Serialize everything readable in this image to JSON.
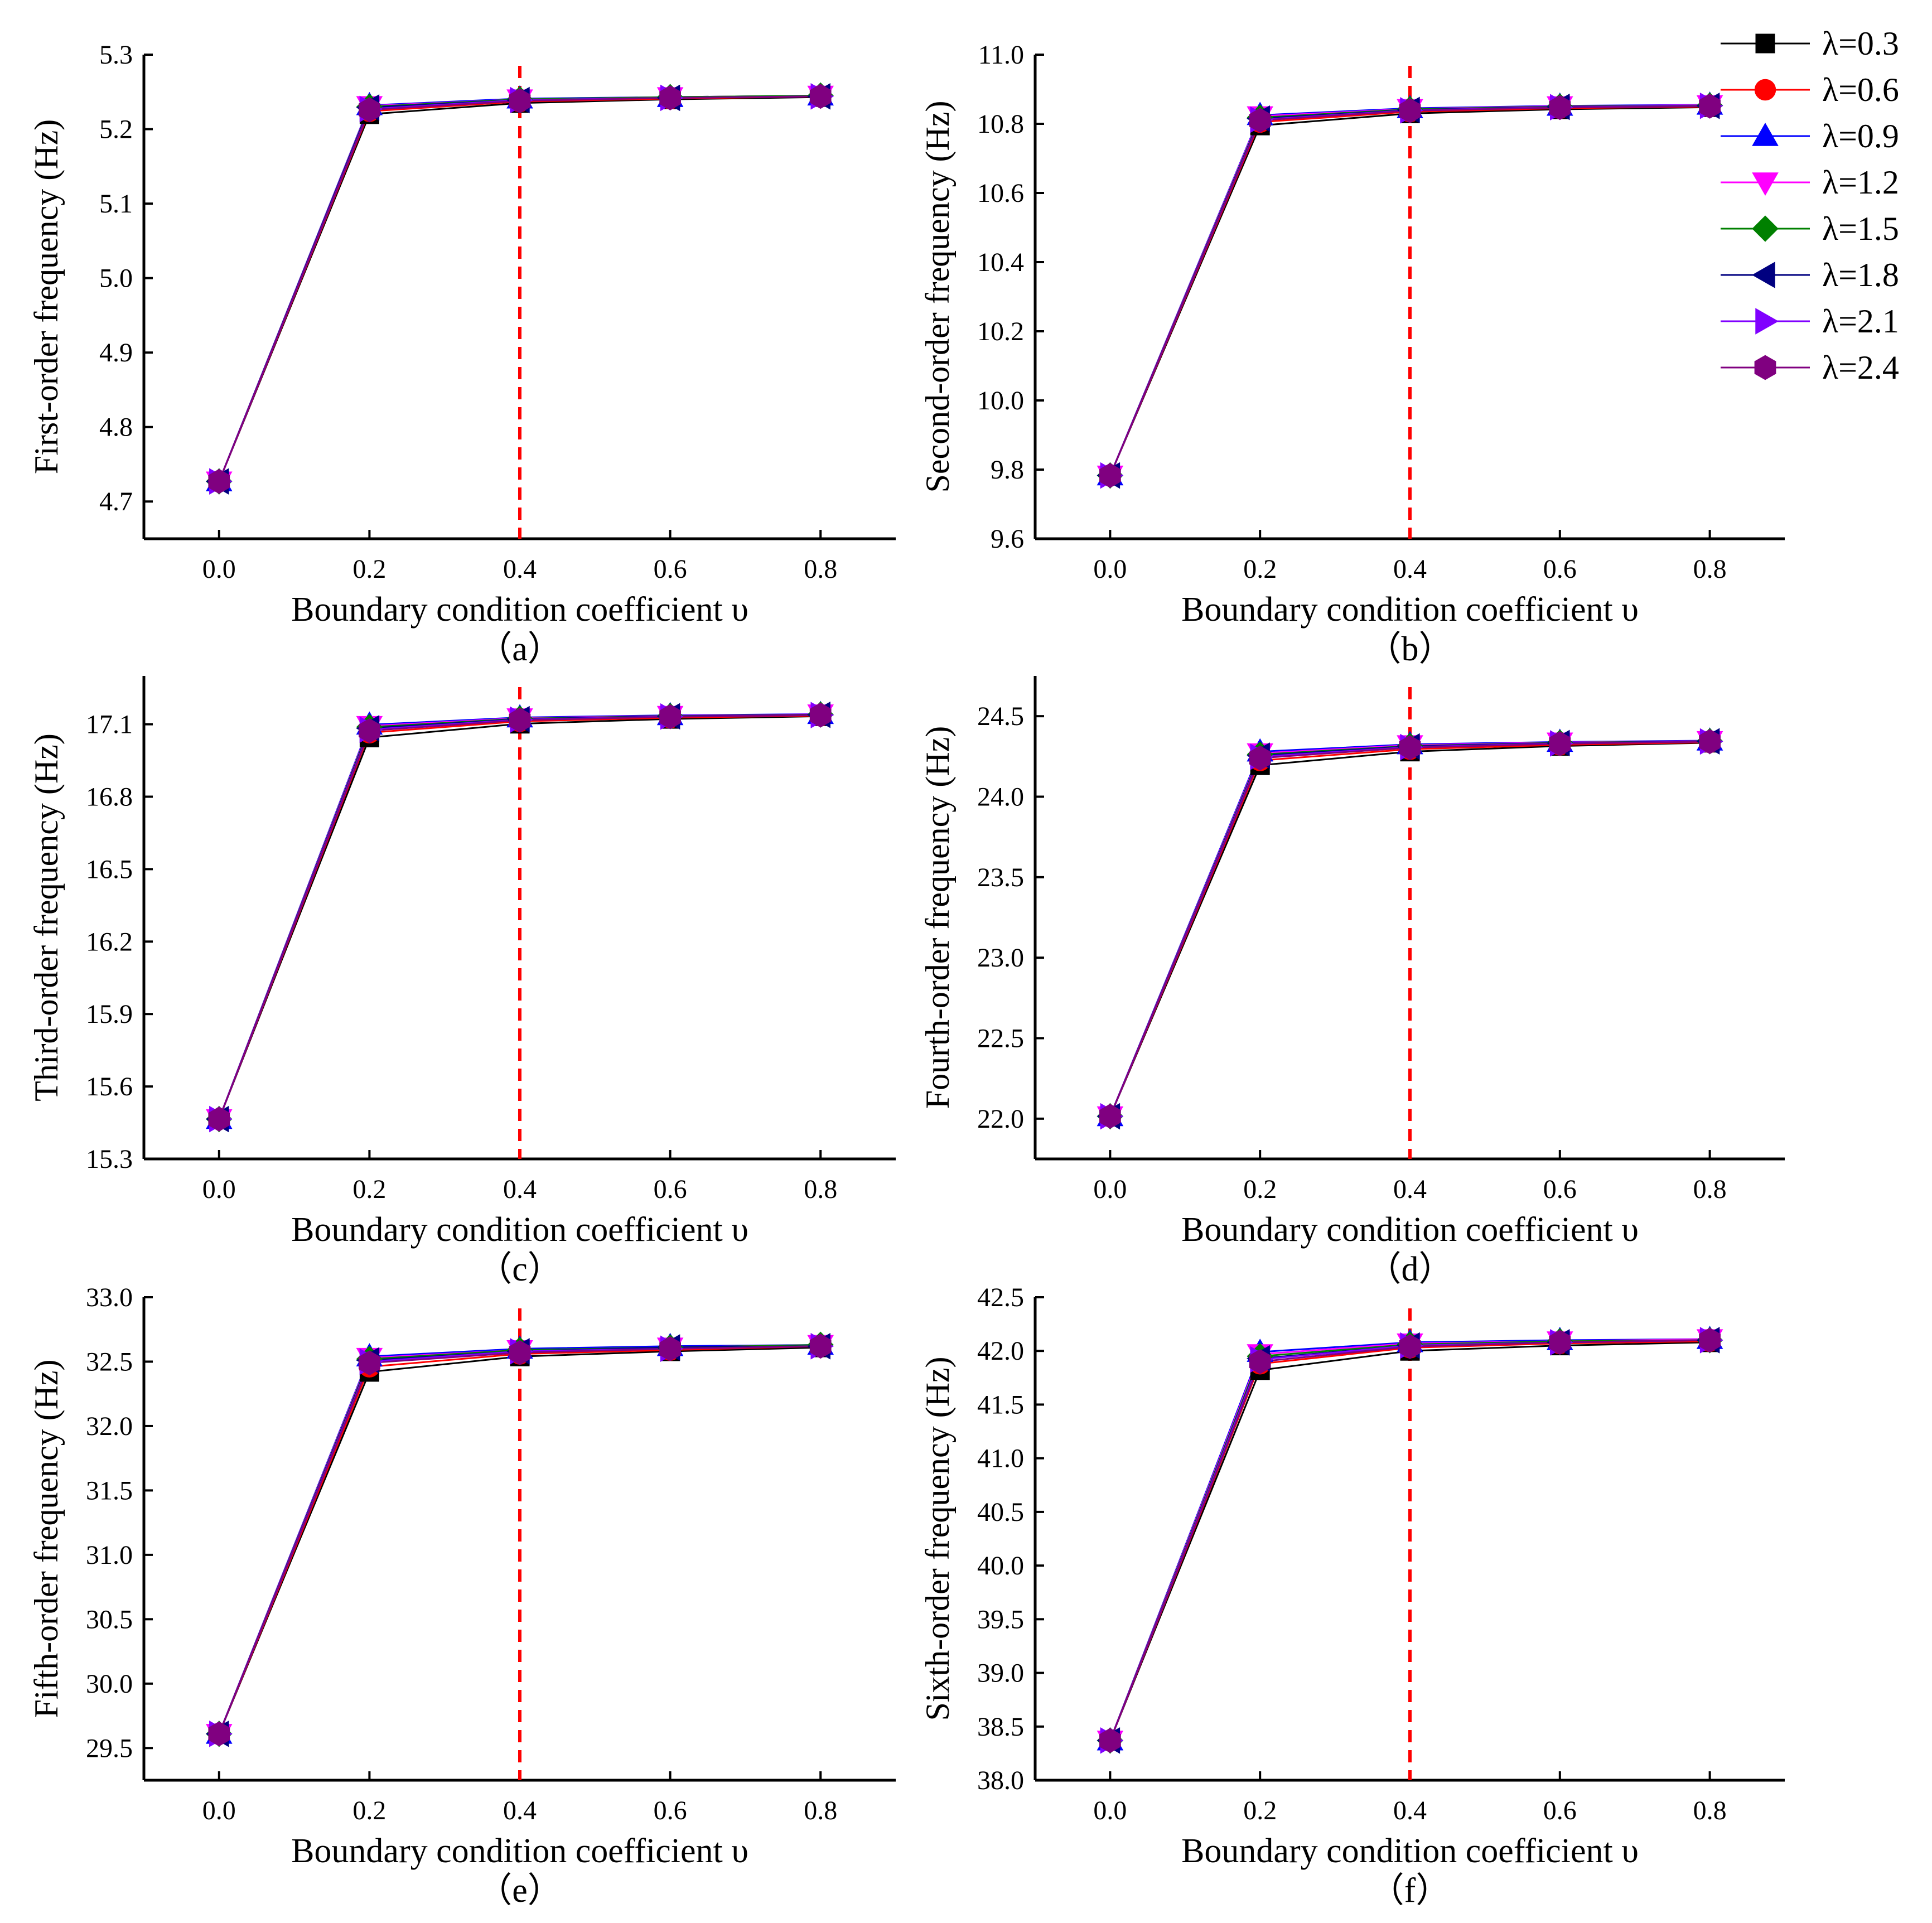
{
  "legend": [
    {
      "label": "λ=0.3",
      "color": "#000000",
      "marker": "square"
    },
    {
      "label": "λ=0.6",
      "color": "#ff0000",
      "marker": "circle"
    },
    {
      "label": "λ=0.9",
      "color": "#0000ff",
      "marker": "triangle-up"
    },
    {
      "label": "λ=1.2",
      "color": "#ff00ff",
      "marker": "triangle-down"
    },
    {
      "label": "λ=1.5",
      "color": "#008000",
      "marker": "diamond"
    },
    {
      "label": "λ=1.8",
      "color": "#000080",
      "marker": "triangle-left"
    },
    {
      "label": "λ=2.1",
      "color": "#8000ff",
      "marker": "triangle-right"
    },
    {
      "label": "λ=2.4",
      "color": "#800080",
      "marker": "hexagon"
    }
  ],
  "reference_line": {
    "x": 0.4,
    "color": "#ff0000",
    "style": "dashed"
  },
  "chart_data": [
    {
      "type": "line",
      "caption": "（a）",
      "xlabel": "Boundary condition coefficient υ",
      "ylabel": "First-order frequency (Hz)",
      "x": [
        0.0,
        0.2,
        0.4,
        0.6,
        0.8
      ],
      "xlim": [
        -0.1,
        0.9
      ],
      "xticks": [
        "0.0",
        "0.2",
        "0.4",
        "0.6",
        "0.8"
      ],
      "ylim": [
        4.65,
        5.3
      ],
      "yticks": [
        "4.7",
        "4.8",
        "4.9",
        "5.0",
        "5.1",
        "5.2",
        "5.3"
      ],
      "series": [
        {
          "name": "λ=0.3",
          "values": [
            4.727,
            5.22,
            5.235,
            5.24,
            5.243
          ]
        },
        {
          "name": "λ=0.6",
          "values": [
            4.727,
            5.224,
            5.237,
            5.241,
            5.244
          ]
        },
        {
          "name": "λ=0.9",
          "values": [
            4.727,
            5.232,
            5.241,
            5.243,
            5.245
          ]
        },
        {
          "name": "λ=1.2",
          "values": [
            4.727,
            5.231,
            5.24,
            5.243,
            5.245
          ]
        },
        {
          "name": "λ=1.5",
          "values": [
            4.727,
            5.23,
            5.24,
            5.243,
            5.245
          ]
        },
        {
          "name": "λ=1.8",
          "values": [
            4.727,
            5.229,
            5.239,
            5.242,
            5.244
          ]
        },
        {
          "name": "λ=2.1",
          "values": [
            4.727,
            5.227,
            5.239,
            5.242,
            5.244
          ]
        },
        {
          "name": "λ=2.4",
          "values": [
            4.727,
            5.226,
            5.238,
            5.242,
            5.244
          ]
        }
      ]
    },
    {
      "type": "line",
      "caption": "（b）",
      "xlabel": "Boundary condition coefficient υ",
      "ylabel": "Second-order frequency (Hz)",
      "x": [
        0.0,
        0.2,
        0.4,
        0.6,
        0.8
      ],
      "xlim": [
        -0.1,
        0.9
      ],
      "xticks": [
        "0.0",
        "0.2",
        "0.4",
        "0.6",
        "0.8"
      ],
      "ylim": [
        9.6,
        11.0
      ],
      "yticks": [
        "9.6",
        "9.8",
        "10.0",
        "10.2",
        "10.4",
        "10.6",
        "10.8",
        "11.0"
      ],
      "series": [
        {
          "name": "λ=0.3",
          "values": [
            9.783,
            10.795,
            10.83,
            10.842,
            10.848
          ]
        },
        {
          "name": "λ=0.6",
          "values": [
            9.783,
            10.805,
            10.835,
            10.845,
            10.85
          ]
        },
        {
          "name": "λ=0.9",
          "values": [
            9.783,
            10.825,
            10.845,
            10.852,
            10.855
          ]
        },
        {
          "name": "λ=1.2",
          "values": [
            9.783,
            10.822,
            10.843,
            10.851,
            10.854
          ]
        },
        {
          "name": "λ=1.5",
          "values": [
            9.783,
            10.818,
            10.842,
            10.85,
            10.853
          ]
        },
        {
          "name": "λ=1.8",
          "values": [
            9.783,
            10.815,
            10.84,
            10.849,
            10.852
          ]
        },
        {
          "name": "λ=2.1",
          "values": [
            9.783,
            10.812,
            10.839,
            10.848,
            10.852
          ]
        },
        {
          "name": "λ=2.4",
          "values": [
            9.783,
            10.81,
            10.838,
            10.847,
            10.851
          ]
        }
      ]
    },
    {
      "type": "line",
      "caption": "（c）",
      "xlabel": "Boundary condition coefficient υ",
      "ylabel": "Third-order frequency (Hz)",
      "x": [
        0.0,
        0.2,
        0.4,
        0.6,
        0.8
      ],
      "xlim": [
        -0.1,
        0.9
      ],
      "xticks": [
        "0.0",
        "0.2",
        "0.4",
        "0.6",
        "0.8"
      ],
      "ylim": [
        15.3,
        17.3
      ],
      "yticks": [
        "15.3",
        "15.6",
        "15.9",
        "16.2",
        "16.5",
        "16.8",
        "17.1"
      ],
      "series": [
        {
          "name": "λ=0.3",
          "values": [
            15.465,
            17.045,
            17.102,
            17.122,
            17.133
          ]
        },
        {
          "name": "λ=0.6",
          "values": [
            15.465,
            17.065,
            17.112,
            17.127,
            17.136
          ]
        },
        {
          "name": "λ=0.9",
          "values": [
            15.465,
            17.098,
            17.128,
            17.137,
            17.142
          ]
        },
        {
          "name": "λ=1.2",
          "values": [
            15.465,
            17.093,
            17.125,
            17.135,
            17.141
          ]
        },
        {
          "name": "λ=1.5",
          "values": [
            15.465,
            17.088,
            17.123,
            17.134,
            17.14
          ]
        },
        {
          "name": "λ=1.8",
          "values": [
            15.465,
            17.083,
            17.121,
            17.133,
            17.139
          ]
        },
        {
          "name": "λ=2.1",
          "values": [
            15.465,
            17.078,
            17.119,
            17.132,
            17.138
          ]
        },
        {
          "name": "λ=2.4",
          "values": [
            15.465,
            17.073,
            17.117,
            17.131,
            17.138
          ]
        }
      ]
    },
    {
      "type": "line",
      "caption": "（d）",
      "xlabel": "Boundary condition coefficient υ",
      "ylabel": "Fourth-order frequency (Hz)",
      "x": [
        0.0,
        0.2,
        0.4,
        0.6,
        0.8
      ],
      "xlim": [
        -0.1,
        0.9
      ],
      "xticks": [
        "0.0",
        "0.2",
        "0.4",
        "0.6",
        "0.8"
      ],
      "ylim": [
        21.75,
        24.75
      ],
      "yticks": [
        "22.0",
        "22.5",
        "23.0",
        "23.5",
        "24.0",
        "24.5"
      ],
      "series": [
        {
          "name": "λ=0.3",
          "values": [
            22.015,
            24.195,
            24.28,
            24.315,
            24.335
          ]
        },
        {
          "name": "λ=0.6",
          "values": [
            22.015,
            24.225,
            24.295,
            24.322,
            24.338
          ]
        },
        {
          "name": "λ=0.9",
          "values": [
            22.015,
            24.28,
            24.325,
            24.34,
            24.348
          ]
        },
        {
          "name": "λ=1.2",
          "values": [
            22.015,
            24.27,
            24.32,
            24.337,
            24.346
          ]
        },
        {
          "name": "λ=1.5",
          "values": [
            22.015,
            24.262,
            24.315,
            24.335,
            24.345
          ]
        },
        {
          "name": "λ=1.8",
          "values": [
            22.015,
            24.255,
            24.312,
            24.333,
            24.344
          ]
        },
        {
          "name": "λ=2.1",
          "values": [
            22.015,
            24.248,
            24.308,
            24.331,
            24.343
          ]
        },
        {
          "name": "λ=2.4",
          "values": [
            22.015,
            24.24,
            24.305,
            24.329,
            24.342
          ]
        }
      ]
    },
    {
      "type": "line",
      "caption": "（e）",
      "xlabel": "Boundary condition coefficient υ",
      "ylabel": "Fifth-order frequency (Hz)",
      "x": [
        0.0,
        0.2,
        0.4,
        0.6,
        0.8
      ],
      "xlim": [
        -0.1,
        0.9
      ],
      "xticks": [
        "0.0",
        "0.2",
        "0.4",
        "0.6",
        "0.8"
      ],
      "ylim": [
        29.25,
        33.0
      ],
      "yticks": [
        "29.5",
        "30.0",
        "30.5",
        "31.0",
        "31.5",
        "32.0",
        "32.5",
        "33.0"
      ],
      "series": [
        {
          "name": "λ=0.3",
          "values": [
            29.61,
            32.42,
            32.54,
            32.58,
            32.61
          ]
        },
        {
          "name": "λ=0.6",
          "values": [
            29.61,
            32.46,
            32.56,
            32.59,
            32.62
          ]
        },
        {
          "name": "λ=0.9",
          "values": [
            29.61,
            32.54,
            32.6,
            32.62,
            32.63
          ]
        },
        {
          "name": "λ=1.2",
          "values": [
            29.61,
            32.53,
            32.59,
            32.61,
            32.63
          ]
        },
        {
          "name": "λ=1.5",
          "values": [
            29.61,
            32.52,
            32.59,
            32.61,
            32.63
          ]
        },
        {
          "name": "λ=1.8",
          "values": [
            29.61,
            32.51,
            32.58,
            32.61,
            32.62
          ]
        },
        {
          "name": "λ=2.1",
          "values": [
            29.61,
            32.5,
            32.58,
            32.6,
            32.62
          ]
        },
        {
          "name": "λ=2.4",
          "values": [
            29.61,
            32.49,
            32.57,
            32.6,
            32.62
          ]
        }
      ]
    },
    {
      "type": "line",
      "caption": "（f）",
      "xlabel": "Boundary condition coefficient υ",
      "ylabel": "Sixth-order frequency (Hz)",
      "x": [
        0.0,
        0.2,
        0.4,
        0.6,
        0.8
      ],
      "xlim": [
        -0.1,
        0.9
      ],
      "xticks": [
        "0.0",
        "0.2",
        "0.4",
        "0.6",
        "0.8"
      ],
      "ylim": [
        38.0,
        42.5
      ],
      "yticks": [
        "38.0",
        "38.5",
        "39.0",
        "39.5",
        "40.0",
        "40.5",
        "41.0",
        "41.5",
        "42.0",
        "42.5"
      ],
      "series": [
        {
          "name": "λ=0.3",
          "values": [
            38.37,
            41.82,
            42.0,
            42.05,
            42.08
          ]
        },
        {
          "name": "λ=0.6",
          "values": [
            38.37,
            41.88,
            42.03,
            42.07,
            42.09
          ]
        },
        {
          "name": "λ=0.9",
          "values": [
            38.37,
            41.99,
            42.08,
            42.1,
            42.11
          ]
        },
        {
          "name": "λ=1.2",
          "values": [
            38.37,
            41.97,
            42.07,
            42.09,
            42.11
          ]
        },
        {
          "name": "λ=1.5",
          "values": [
            38.37,
            41.95,
            42.06,
            42.09,
            42.1
          ]
        },
        {
          "name": "λ=1.8",
          "values": [
            38.37,
            41.93,
            42.05,
            42.08,
            42.1
          ]
        },
        {
          "name": "λ=2.1",
          "values": [
            38.37,
            41.92,
            42.05,
            42.08,
            42.1
          ]
        },
        {
          "name": "λ=2.4",
          "values": [
            38.37,
            41.9,
            42.04,
            42.08,
            42.1
          ]
        }
      ]
    }
  ]
}
